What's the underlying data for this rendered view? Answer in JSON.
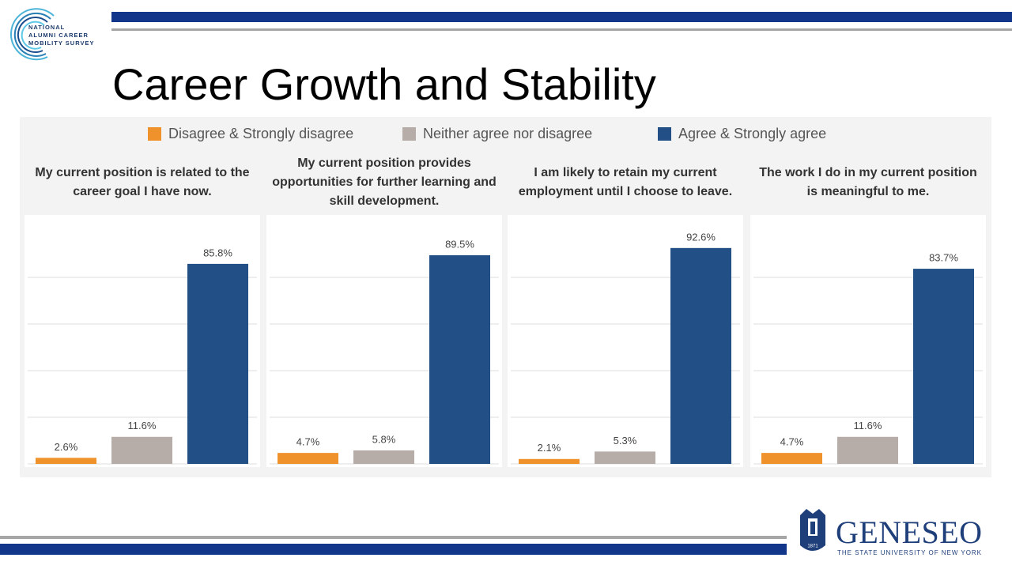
{
  "header": {
    "logo_lines": [
      "NATIONAL",
      "ALUMNI CAREER",
      "MOBILITY SURVEY"
    ],
    "title": "Career Growth and Stability"
  },
  "legend": {
    "items": [
      {
        "name": "Disagree & Strongly disagree",
        "color": "#f0922b"
      },
      {
        "name": "Neither agree nor disagree",
        "color": "#b6aca8"
      },
      {
        "name": "Agree & Strongly agree",
        "color": "#214f86"
      }
    ]
  },
  "chart_data": [
    {
      "type": "bar",
      "title": "My current position is related to the career goal I have now.",
      "values": [
        2.6,
        11.6,
        85.8
      ],
      "value_labels": [
        "2.6%",
        "11.6%",
        "85.8%"
      ],
      "ylim": [
        0,
        100
      ],
      "yticks": [
        0,
        20,
        40,
        60,
        80
      ],
      "grid": true
    },
    {
      "type": "bar",
      "title": "My current position provides opportunities for further learning and skill development.",
      "values": [
        4.7,
        5.8,
        89.5
      ],
      "value_labels": [
        "4.7%",
        "5.8%",
        "89.5%"
      ],
      "ylim": [
        0,
        100
      ],
      "yticks": [
        0,
        20,
        40,
        60,
        80
      ],
      "grid": true
    },
    {
      "type": "bar",
      "title": "I am likely to retain my current employment until I choose to leave.",
      "values": [
        2.1,
        5.3,
        92.6
      ],
      "value_labels": [
        "2.1%",
        "5.3%",
        "92.6%"
      ],
      "ylim": [
        0,
        100
      ],
      "yticks": [
        0,
        20,
        40,
        60,
        80
      ],
      "grid": true
    },
    {
      "type": "bar",
      "title": "The work I do in my current position is meaningful to me.",
      "values": [
        4.7,
        11.6,
        83.7
      ],
      "value_labels": [
        "4.7%",
        "11.6%",
        "83.7%"
      ],
      "ylim": [
        0,
        100
      ],
      "yticks": [
        0,
        20,
        40,
        60,
        80
      ],
      "grid": true
    }
  ],
  "footer": {
    "logo_name": "GENESEO",
    "logo_subtitle": "THE STATE UNIVERSITY OF NEW YORK",
    "logo_year": "1871"
  }
}
